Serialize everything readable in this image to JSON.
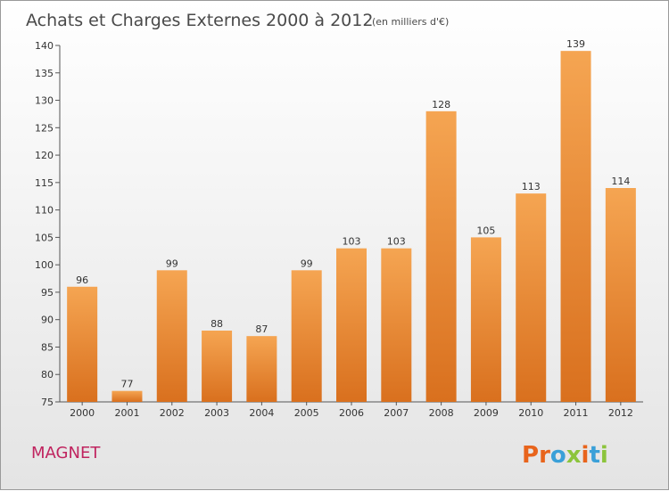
{
  "chart_data": {
    "type": "bar",
    "title": "Achats et Charges Externes 2000 à 2012",
    "subtitle": "(en milliers d'€)",
    "categories": [
      "2000",
      "2001",
      "2002",
      "2003",
      "2004",
      "2005",
      "2006",
      "2007",
      "2008",
      "2009",
      "2010",
      "2011",
      "2012"
    ],
    "values": [
      96,
      77,
      99,
      88,
      87,
      99,
      103,
      103,
      128,
      105,
      113,
      139,
      114
    ],
    "ylim": [
      75,
      140
    ],
    "yticks": [
      75,
      80,
      85,
      90,
      95,
      100,
      105,
      110,
      115,
      120,
      125,
      130,
      135,
      140
    ],
    "grid": false,
    "bar_color_top": "#f5a552",
    "bar_color_bottom": "#d9701e"
  },
  "footer": {
    "commune": "MAGNET",
    "logo_text": "Proxiti",
    "logo_colors": [
      "#e8641c",
      "#e8641c",
      "#3aa0d8",
      "#8cc43c",
      "#e8641c",
      "#3aa0d8",
      "#8cc43c"
    ]
  }
}
